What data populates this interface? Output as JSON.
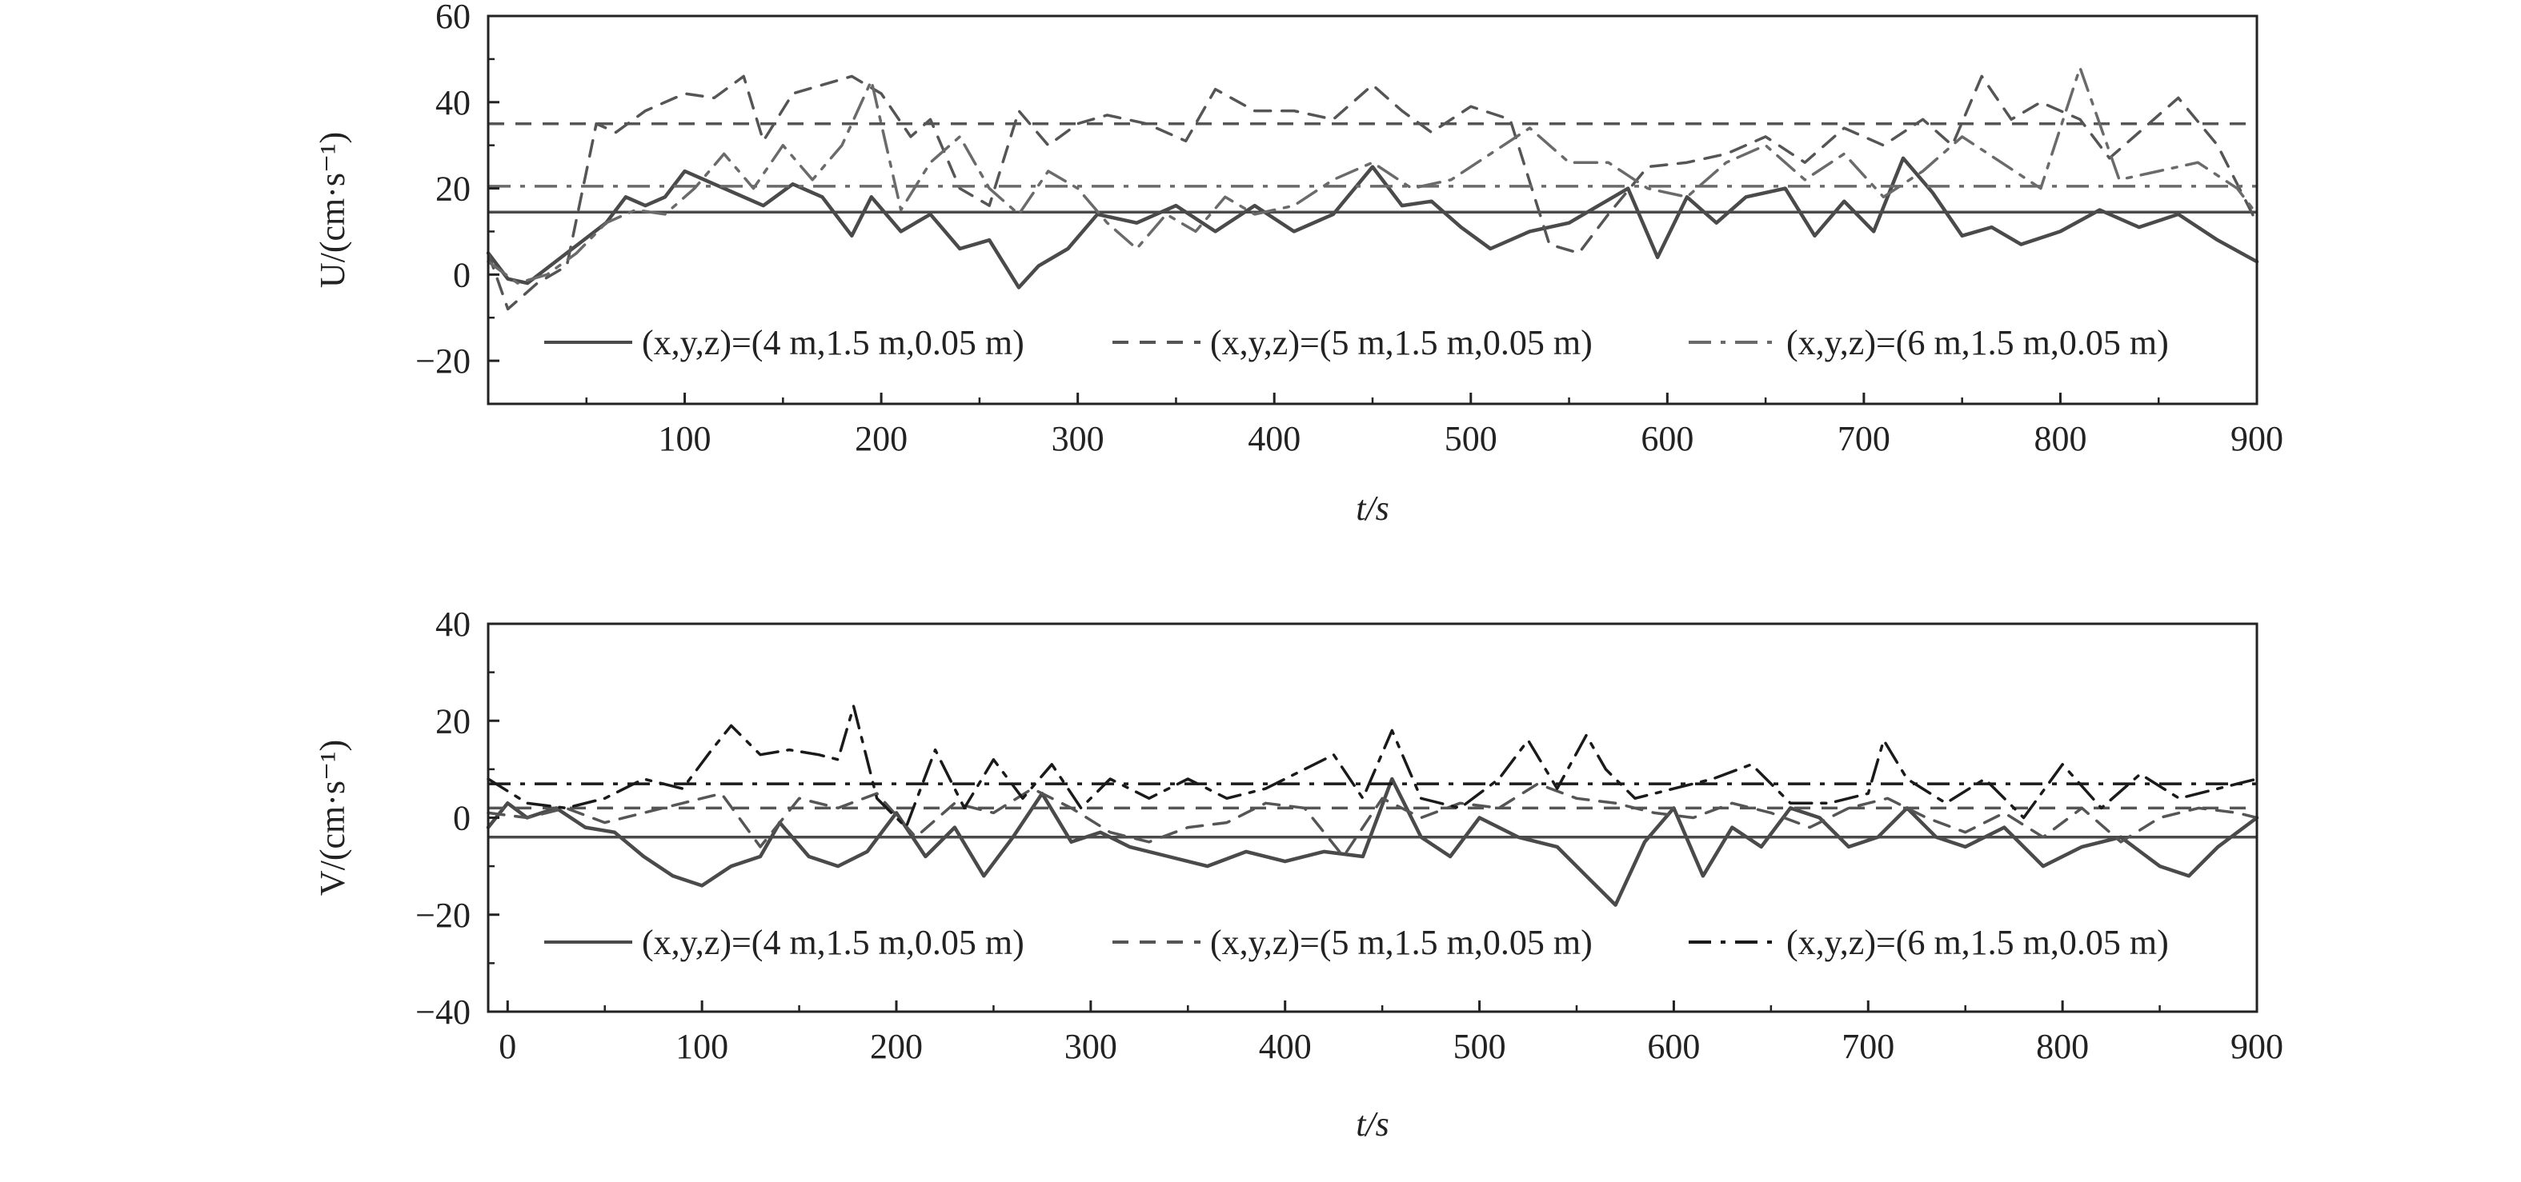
{
  "figure": {
    "panels_count": 2
  },
  "legend": {
    "entries": [
      {
        "label": "(x,y,z)=(4 m,1.5 m,0.05 m)",
        "style": "solid"
      },
      {
        "label": "(x,y,z)=(5 m,1.5 m,0.05 m)",
        "style": "dashed"
      },
      {
        "label": "(x,y,z)=(6 m,1.5 m,0.05 m)",
        "style": "dashdot"
      }
    ]
  },
  "colors": {
    "solid": "#4a4a4a",
    "dashed": "#555555",
    "dashdot_u": "#6a6a6a",
    "dashdot_v": "#1a1a1a",
    "axis": "#222222"
  },
  "chart_data": [
    {
      "type": "line",
      "title": "",
      "xlabel": "t/s",
      "ylabel": "U/(cm·s⁻¹)",
      "xlim": [
        0,
        900
      ],
      "ylim": [
        -30,
        60
      ],
      "xticks": [
        100,
        200,
        300,
        400,
        500,
        600,
        700,
        800,
        900
      ],
      "yticks": [
        -20,
        0,
        20,
        40,
        60
      ],
      "grid": false,
      "legend_position": "bottom-inside",
      "series": [
        {
          "name": "(x,y,z)=(4 m,1.5 m,0.05 m)",
          "style": "solid",
          "mean": 14.5,
          "x": [
            0,
            10,
            20,
            40,
            60,
            70,
            80,
            90,
            100,
            110,
            120,
            140,
            155,
            170,
            185,
            195,
            210,
            225,
            240,
            255,
            270,
            280,
            295,
            310,
            330,
            350,
            370,
            390,
            410,
            430,
            450,
            465,
            480,
            495,
            510,
            530,
            550,
            565,
            580,
            595,
            610,
            625,
            640,
            660,
            675,
            690,
            705,
            720,
            735,
            750,
            765,
            780,
            800,
            820,
            840,
            860,
            880,
            900
          ],
          "y": [
            5,
            -1,
            -2,
            5,
            12,
            18,
            16,
            18,
            24,
            22,
            20,
            16,
            21,
            18,
            9,
            18,
            10,
            14,
            6,
            8,
            -3,
            2,
            6,
            14,
            12,
            16,
            10,
            16,
            10,
            14,
            25,
            16,
            17,
            11,
            6,
            10,
            12,
            16,
            20,
            4,
            18,
            12,
            18,
            20,
            9,
            17,
            10,
            27,
            19,
            9,
            11,
            7,
            10,
            15,
            11,
            14,
            8,
            3
          ]
        },
        {
          "name": "(x,y,z)=(5 m,1.5 m,0.05 m)",
          "style": "dashed",
          "mean": 35,
          "x": [
            0,
            10,
            25,
            40,
            55,
            65,
            80,
            100,
            115,
            130,
            140,
            155,
            170,
            185,
            200,
            215,
            225,
            240,
            255,
            270,
            285,
            300,
            315,
            335,
            355,
            370,
            390,
            410,
            430,
            450,
            465,
            480,
            500,
            520,
            540,
            555,
            570,
            590,
            610,
            630,
            650,
            670,
            690,
            710,
            730,
            745,
            760,
            775,
            790,
            810,
            825,
            840,
            860,
            880,
            900
          ],
          "y": [
            5,
            -8,
            -2,
            2,
            35,
            33,
            38,
            42,
            41,
            46,
            31,
            42,
            44,
            46,
            42,
            32,
            36,
            20,
            16,
            38,
            30,
            35,
            37,
            35,
            31,
            43,
            38,
            38,
            36,
            44,
            38,
            33,
            39,
            36,
            7,
            5,
            14,
            25,
            26,
            28,
            32,
            26,
            34,
            30,
            36,
            30,
            46,
            36,
            40,
            36,
            27,
            33,
            41,
            30,
            12
          ]
        },
        {
          "name": "(x,y,z)=(6 m,1.5 m,0.05 m)",
          "style": "dashdot",
          "mean": 20.5,
          "x": [
            0,
            15,
            30,
            45,
            60,
            75,
            90,
            105,
            120,
            135,
            150,
            165,
            180,
            195,
            210,
            225,
            240,
            255,
            270,
            285,
            300,
            315,
            330,
            345,
            360,
            375,
            390,
            410,
            430,
            450,
            470,
            490,
            510,
            530,
            550,
            570,
            590,
            610,
            630,
            650,
            670,
            690,
            710,
            730,
            750,
            770,
            790,
            810,
            830,
            850,
            870,
            890,
            900
          ],
          "y": [
            3,
            -2,
            0,
            5,
            12,
            15,
            14,
            20,
            28,
            20,
            30,
            22,
            30,
            45,
            15,
            26,
            32,
            20,
            14,
            24,
            20,
            12,
            6,
            14,
            10,
            18,
            14,
            16,
            22,
            26,
            20,
            22,
            28,
            34,
            26,
            26,
            20,
            18,
            26,
            30,
            22,
            28,
            18,
            24,
            32,
            26,
            20,
            48,
            22,
            24,
            26,
            20,
            14
          ]
        }
      ]
    },
    {
      "type": "line",
      "title": "",
      "xlabel": "t/s",
      "ylabel": "V/(cm·s⁻¹)",
      "xlim": [
        -10,
        900
      ],
      "ylim": [
        -40,
        40
      ],
      "xticks": [
        0,
        100,
        200,
        300,
        400,
        500,
        600,
        700,
        800,
        900
      ],
      "yticks": [
        -40,
        -20,
        0,
        20,
        40
      ],
      "grid": false,
      "legend_position": "bottom-inside",
      "series": [
        {
          "name": "(x,y,z)=(4 m,1.5 m,0.05 m)",
          "style": "solid",
          "mean": -4,
          "x": [
            -10,
            0,
            10,
            25,
            40,
            55,
            70,
            85,
            100,
            115,
            130,
            140,
            155,
            170,
            185,
            200,
            215,
            230,
            245,
            260,
            275,
            290,
            305,
            320,
            340,
            360,
            380,
            400,
            420,
            440,
            455,
            470,
            485,
            500,
            520,
            540,
            555,
            570,
            585,
            600,
            615,
            630,
            645,
            660,
            675,
            690,
            705,
            720,
            735,
            750,
            770,
            790,
            810,
            830,
            850,
            865,
            880,
            900
          ],
          "y": [
            -2,
            3,
            0,
            2,
            -2,
            -3,
            -8,
            -12,
            -14,
            -10,
            -8,
            -1,
            -8,
            -10,
            -7,
            1,
            -8,
            -2,
            -12,
            -4,
            5,
            -5,
            -3,
            -6,
            -8,
            -10,
            -7,
            -9,
            -7,
            -8,
            8,
            -4,
            -8,
            0,
            -4,
            -6,
            -12,
            -18,
            -5,
            2,
            -12,
            -2,
            -6,
            2,
            0,
            -6,
            -4,
            2,
            -4,
            -6,
            -2,
            -10,
            -6,
            -4,
            -10,
            -12,
            -6,
            0
          ]
        },
        {
          "name": "(x,y,z)=(5 m,1.5 m,0.05 m)",
          "style": "dashed",
          "mean": 2,
          "x": [
            -10,
            10,
            30,
            50,
            70,
            90,
            110,
            130,
            150,
            170,
            190,
            210,
            230,
            250,
            270,
            290,
            310,
            330,
            350,
            370,
            390,
            410,
            430,
            450,
            470,
            490,
            510,
            530,
            550,
            570,
            590,
            610,
            630,
            650,
            670,
            690,
            710,
            730,
            750,
            770,
            790,
            810,
            830,
            850,
            870,
            890,
            900
          ],
          "y": [
            1,
            0,
            2,
            -1,
            1,
            3,
            5,
            -6,
            4,
            2,
            5,
            -4,
            3,
            1,
            6,
            2,
            -3,
            -5,
            -2,
            -1,
            3,
            2,
            -8,
            4,
            0,
            3,
            2,
            7,
            4,
            3,
            1,
            0,
            3,
            1,
            -2,
            2,
            4,
            0,
            -3,
            1,
            -4,
            2,
            -5,
            0,
            2,
            1,
            0
          ]
        },
        {
          "name": "(x,y,z)=(6 m,1.5 m,0.05 m)",
          "style": "dashdot",
          "mean": 7,
          "x": [
            -10,
            10,
            30,
            50,
            70,
            90,
            105,
            115,
            130,
            145,
            160,
            170,
            178,
            190,
            205,
            220,
            235,
            250,
            265,
            280,
            295,
            310,
            330,
            350,
            370,
            390,
            410,
            425,
            440,
            455,
            470,
            490,
            510,
            525,
            540,
            555,
            565,
            580,
            600,
            620,
            640,
            660,
            680,
            700,
            708,
            720,
            740,
            760,
            780,
            800,
            820,
            840,
            860,
            880,
            900
          ],
          "y": [
            8,
            3,
            2,
            4,
            8,
            6,
            14,
            19,
            13,
            14,
            13,
            12,
            23,
            4,
            -2,
            14,
            2,
            12,
            4,
            11,
            2,
            8,
            4,
            8,
            4,
            6,
            10,
            13,
            4,
            18,
            4,
            2,
            8,
            16,
            6,
            17,
            10,
            4,
            6,
            8,
            11,
            3,
            3,
            5,
            16,
            8,
            3,
            8,
            0,
            11,
            2,
            9,
            4,
            6,
            8
          ]
        }
      ]
    }
  ]
}
